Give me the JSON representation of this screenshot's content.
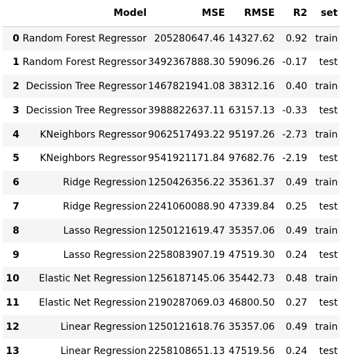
{
  "table": {
    "columns": [
      "",
      "Model",
      "MSE",
      "RMSE",
      "R2",
      "set"
    ],
    "rows": [
      {
        "index": "0",
        "model": "Random Forest Regressor",
        "mse": "205280647.46",
        "rmse": "14327.62",
        "r2": "0.92",
        "set": "train"
      },
      {
        "index": "1",
        "model": "Random Forest Regressor",
        "mse": "3492367888.30",
        "rmse": "59096.26",
        "r2": "-0.17",
        "set": "test"
      },
      {
        "index": "2",
        "model": "Decission Tree Regressor",
        "mse": "1467821941.08",
        "rmse": "38312.16",
        "r2": "0.40",
        "set": "train"
      },
      {
        "index": "3",
        "model": "Decission Tree Regressor",
        "mse": "3988822637.11",
        "rmse": "63157.13",
        "r2": "-0.33",
        "set": "test"
      },
      {
        "index": "4",
        "model": "KNeighbors Regressor",
        "mse": "9062517493.22",
        "rmse": "95197.26",
        "r2": "-2.73",
        "set": "train"
      },
      {
        "index": "5",
        "model": "KNeighbors Regressor",
        "mse": "9541921171.84",
        "rmse": "97682.76",
        "r2": "-2.19",
        "set": "test"
      },
      {
        "index": "6",
        "model": "Ridge Regression",
        "mse": "1250426356.22",
        "rmse": "35361.37",
        "r2": "0.49",
        "set": "train"
      },
      {
        "index": "7",
        "model": "Ridge Regression",
        "mse": "2241060088.90",
        "rmse": "47339.84",
        "r2": "0.25",
        "set": "test"
      },
      {
        "index": "8",
        "model": "Lasso Regression",
        "mse": "1250121619.47",
        "rmse": "35357.06",
        "r2": "0.49",
        "set": "train"
      },
      {
        "index": "9",
        "model": "Lasso Regression",
        "mse": "2258083907.19",
        "rmse": "47519.30",
        "r2": "0.24",
        "set": "test"
      },
      {
        "index": "10",
        "model": "Elastic Net Regression",
        "mse": "1256187145.06",
        "rmse": "35442.73",
        "r2": "0.48",
        "set": "train"
      },
      {
        "index": "11",
        "model": "Elastic Net Regression",
        "mse": "2190287069.03",
        "rmse": "46800.50",
        "r2": "0.27",
        "set": "test"
      },
      {
        "index": "12",
        "model": "Linear Regression",
        "mse": "1250121618.76",
        "rmse": "35357.06",
        "r2": "0.49",
        "set": "train"
      },
      {
        "index": "13",
        "model": "Linear Regression",
        "mse": "2258108651.13",
        "rmse": "47519.56",
        "r2": "0.24",
        "set": "test"
      }
    ]
  }
}
